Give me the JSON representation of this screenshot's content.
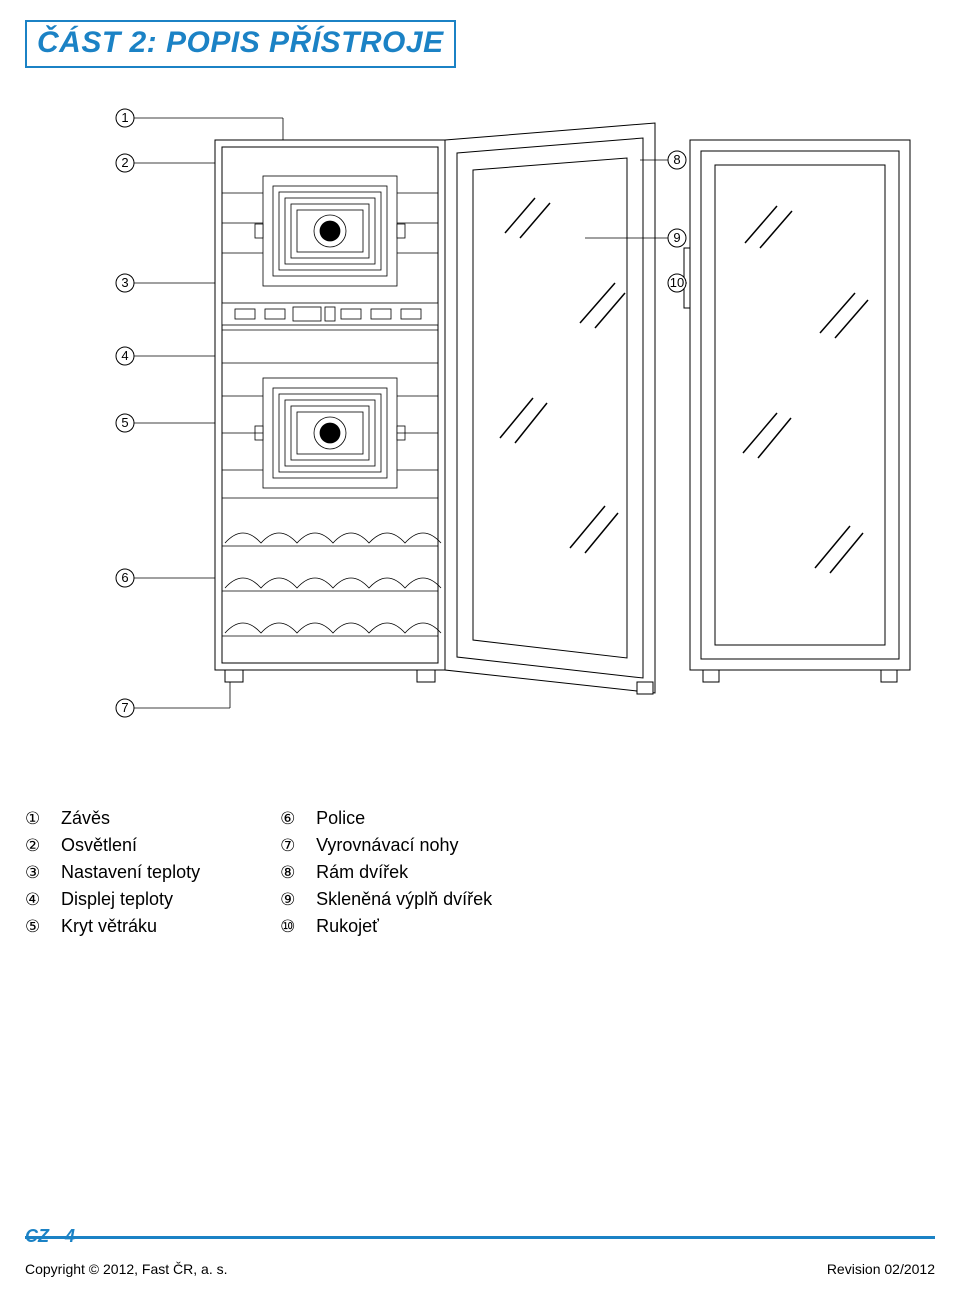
{
  "colors": {
    "accent": "#1b82c5",
    "stroke": "#000000"
  },
  "title": "ČÁST 2: POPIS PŘÍSTROJE",
  "callouts": [
    "1",
    "2",
    "3",
    "4",
    "5",
    "6",
    "7",
    "8",
    "9",
    "10"
  ],
  "legend_left": [
    {
      "n": "1",
      "t": "Závěs"
    },
    {
      "n": "2",
      "t": "Osvětlení"
    },
    {
      "n": "3",
      "t": "Nastavení teploty"
    },
    {
      "n": "4",
      "t": "Displej teploty"
    },
    {
      "n": "5",
      "t": "Kryt větráku"
    }
  ],
  "legend_right": [
    {
      "n": "6",
      "t": "Police"
    },
    {
      "n": "7",
      "t": "Vyrovnávací nohy"
    },
    {
      "n": "8",
      "t": "Rám dvířek"
    },
    {
      "n": "9",
      "t": "Skleněná výplň dvířek"
    },
    {
      "n": "10",
      "t": "Rukojeť"
    }
  ],
  "footer": {
    "page": "CZ - 4",
    "copyright": "Copyright © 2012, Fast ČR, a. s.",
    "revision": "Revision 02/2012"
  }
}
